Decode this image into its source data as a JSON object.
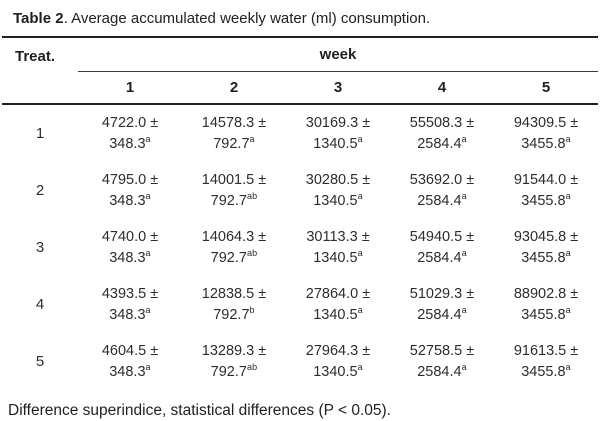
{
  "colors": {
    "text": "#2d2d2d",
    "heading": "#212121",
    "rule": "#212121"
  },
  "caption": {
    "bold": "Table 2",
    "rest": ". Average accumulated weekly water (ml) consumption."
  },
  "table": {
    "treat_header": "Treat.",
    "week_header": "week",
    "week_columns": [
      "1",
      "2",
      "3",
      "4",
      "5"
    ],
    "rows": [
      {
        "treat": "1",
        "cells": [
          {
            "value": "4722.0 ±",
            "error": "348.3",
            "sup": "a"
          },
          {
            "value": "14578.3 ±",
            "error": "792.7",
            "sup": "a"
          },
          {
            "value": "30169.3 ±",
            "error": "1340.5",
            "sup": "a"
          },
          {
            "value": "55508.3 ±",
            "error": "2584.4",
            "sup": "a"
          },
          {
            "value": "94309.5 ±",
            "error": "3455.8",
            "sup": "a"
          }
        ]
      },
      {
        "treat": "2",
        "cells": [
          {
            "value": "4795.0 ±",
            "error": "348.3",
            "sup": "a"
          },
          {
            "value": "14001.5 ±",
            "error": "792.7",
            "sup": "ab"
          },
          {
            "value": "30280.5 ±",
            "error": "1340.5",
            "sup": "a"
          },
          {
            "value": "53692.0 ±",
            "error": "2584.4",
            "sup": "a"
          },
          {
            "value": "91544.0 ±",
            "error": "3455.8",
            "sup": "a"
          }
        ]
      },
      {
        "treat": "3",
        "cells": [
          {
            "value": "4740.0 ±",
            "error": "348.3",
            "sup": "a"
          },
          {
            "value": "14064.3 ±",
            "error": "792.7",
            "sup": "ab"
          },
          {
            "value": "30113.3 ±",
            "error": "1340.5",
            "sup": "a"
          },
          {
            "value": "54940.5 ±",
            "error": "2584.4",
            "sup": "a"
          },
          {
            "value": "93045.8 ±",
            "error": "3455.8",
            "sup": "a"
          }
        ]
      },
      {
        "treat": "4",
        "cells": [
          {
            "value": "4393.5 ±",
            "error": "348.3",
            "sup": "a"
          },
          {
            "value": "12838.5 ±",
            "error": "792.7",
            "sup": "b"
          },
          {
            "value": "27864.0 ±",
            "error": "1340.5",
            "sup": "a"
          },
          {
            "value": "51029.3 ±",
            "error": "2584.4",
            "sup": "a"
          },
          {
            "value": "88902.8 ±",
            "error": "3455.8",
            "sup": "a"
          }
        ]
      },
      {
        "treat": "5",
        "cells": [
          {
            "value": "4604.5 ±",
            "error": "348.3",
            "sup": "a"
          },
          {
            "value": "13289.3 ±",
            "error": "792.7",
            "sup": "ab"
          },
          {
            "value": "27964.3 ±",
            "error": "1340.5",
            "sup": "a"
          },
          {
            "value": "52758.5 ±",
            "error": "2584.4",
            "sup": "a"
          },
          {
            "value": "91613.5 ±",
            "error": "3455.8",
            "sup": "a"
          }
        ]
      }
    ]
  },
  "footnote": "Difference superindice, statistical differences (P < 0.05)."
}
